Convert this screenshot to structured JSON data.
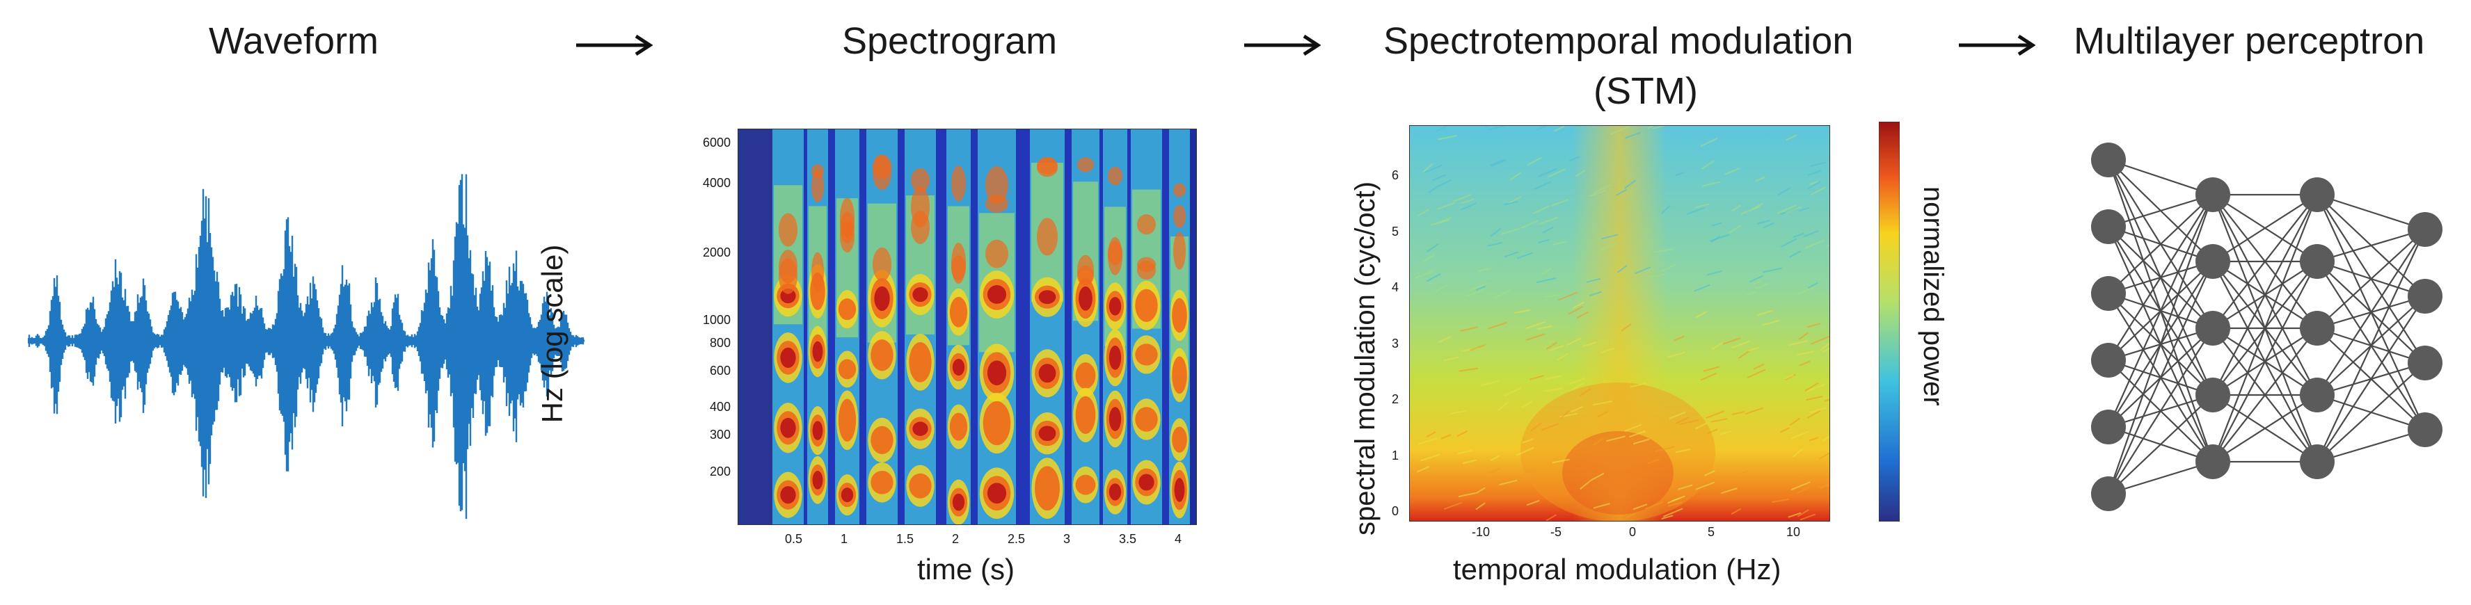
{
  "stages": [
    {
      "title": "Waveform"
    },
    {
      "title": "Spectrogram"
    },
    {
      "title_line1": "Spectrotemporal modulation",
      "title_line2": "(STM)"
    },
    {
      "title": "Multilayer perceptron"
    }
  ],
  "spectrogram": {
    "ylabel": "Hz (log scale)",
    "xlabel": "time (s)",
    "yticks": [
      "6000",
      "4000",
      "2000",
      "1000",
      "800",
      "600",
      "400",
      "300",
      "200"
    ],
    "xticks": [
      "0.5",
      "1",
      "1.5",
      "2",
      "2.5",
      "3",
      "3.5",
      "4"
    ]
  },
  "stm": {
    "ylabel": "spectral modulation (cyc/oct)",
    "xlabel": "temporal modulation (Hz)",
    "colorbar_label": "normalized power",
    "yticks": [
      "6",
      "5",
      "4",
      "3",
      "2",
      "1",
      "0"
    ],
    "xticks": [
      "-10",
      "-5",
      "0",
      "5",
      "10"
    ]
  },
  "mlp": {
    "layers": [
      6,
      5,
      5,
      4
    ]
  },
  "colors": {
    "waveform": "#1f78c1",
    "node": "#5b5b5b",
    "edge": "#4a4a4a",
    "arrow": "#111111"
  }
}
